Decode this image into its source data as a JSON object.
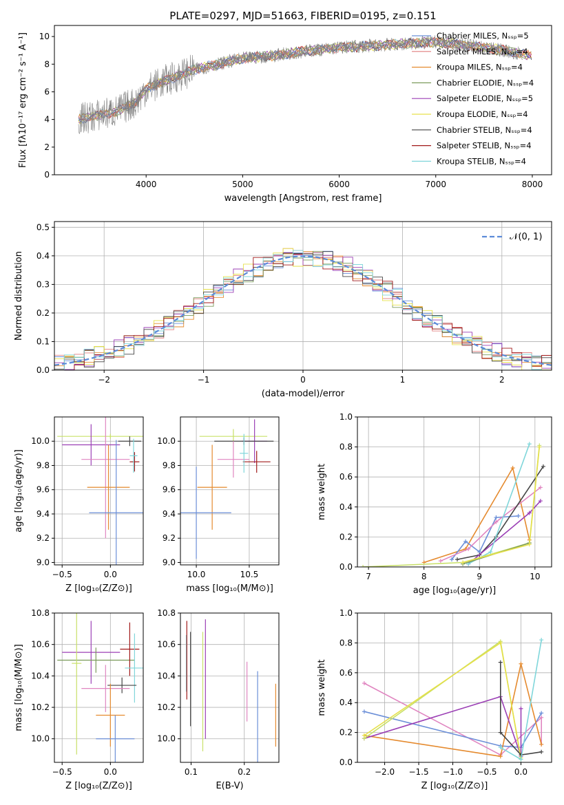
{
  "title": "PLATE=0297, MJD=51663, FIBERID=0195, z=0.151",
  "chart_data": [
    {
      "id": "spectrum",
      "type": "line",
      "xlabel": "wavelength [Angstrom, rest frame]",
      "ylabel": "Flux [fλ10⁻¹⁷ erg cm⁻² s⁻¹ A⁻¹]",
      "xlim": [
        3050,
        8200
      ],
      "ylim": [
        0,
        10.8
      ],
      "xticks": [
        "4000",
        "5000",
        "6000",
        "7000",
        "8000"
      ],
      "yticks": [
        "0",
        "2",
        "4",
        "6",
        "8",
        "10"
      ],
      "grid": false,
      "legend": "upper-right",
      "series": [
        {
          "name": "Chabrier MILES, N_SSP=5",
          "color": "#6b8fd8"
        },
        {
          "name": "Salpeter MILES, N_SSP=4",
          "color": "#e07b7b"
        },
        {
          "name": "Kroupa MILES, N_SSP=4",
          "color": "#e58a2e"
        },
        {
          "name": "Chabrier ELODIE, N_SSP=4",
          "color": "#7a9a5a"
        },
        {
          "name": "Salpeter ELODIE, N_SSP=5",
          "color": "#9b3fb5"
        },
        {
          "name": "Kroupa ELODIE, N_SSP=4",
          "color": "#e6e04a"
        },
        {
          "name": "Chabrier STELIB, N_SSP=4",
          "color": "#444444"
        },
        {
          "name": "Salpeter STELIB, N_SSP=4",
          "color": "#a01818"
        },
        {
          "name": "Kroupa STELIB, N_SSP=4",
          "color": "#7fd6da"
        }
      ],
      "observed_color": "#808080",
      "continuum": {
        "x": [
          3300,
          3500,
          3700,
          3900,
          4000,
          4200,
          4500,
          4800,
          5000,
          5300,
          5600,
          6000,
          6500,
          7000,
          7400,
          7700,
          8000
        ],
        "y": [
          4.0,
          4.3,
          4.6,
          5.3,
          6.2,
          6.8,
          7.6,
          8.1,
          8.4,
          8.6,
          8.9,
          9.2,
          9.4,
          9.6,
          9.3,
          9.0,
          8.6
        ]
      }
    },
    {
      "id": "residuals",
      "type": "histogram",
      "xlabel": "(data-model)/error",
      "ylabel": "Normed distribution",
      "xlim": [
        -2.5,
        2.5
      ],
      "ylim": [
        0,
        0.52
      ],
      "xticks": [
        "−2",
        "−1",
        "0",
        "1",
        "2"
      ],
      "yticks": [
        "0.0",
        "0.1",
        "0.2",
        "0.3",
        "0.4",
        "0.5"
      ],
      "grid": true,
      "legend": "upper-right",
      "reference": {
        "name": "𝒩(0, 1)",
        "color": "#5b8ad8"
      },
      "bin_width": 0.1
    },
    {
      "id": "age-vs-Z",
      "type": "errorbar",
      "xlabel": "Z [log₁₀(Z/Z⊙)]",
      "ylabel": "age  [log₁₀(age/yr)]",
      "xlim": [
        -0.58,
        0.34
      ],
      "ylim": [
        8.98,
        10.2
      ],
      "xticks": [
        "−0.5",
        "0.0"
      ],
      "yticks": [
        "9.0",
        "9.2",
        "9.4",
        "9.6",
        "9.8",
        "10.0"
      ],
      "grid": true,
      "points": [
        {
          "x": -0.0,
          "y": 10.04,
          "xerr": 0.55,
          "yerr": 0.02,
          "c": "#c8e068"
        },
        {
          "x": -0.2,
          "y": 9.97,
          "xerr": 0.3,
          "yerr": 0.17,
          "c": "#9b3fb5"
        },
        {
          "x": 0.2,
          "y": 10.0,
          "xerr": 0.12,
          "yerr": 0.04,
          "c": "#444444"
        },
        {
          "x": -0.05,
          "y": 9.85,
          "xerr": 0.25,
          "yerr": 0.65,
          "c": "#e085c0"
        },
        {
          "x": 0.25,
          "y": 9.83,
          "xerr": 0.05,
          "yerr": 0.08,
          "c": "#a01818"
        },
        {
          "x": -0.02,
          "y": 9.62,
          "xerr": 0.22,
          "yerr": 0.35,
          "c": "#e58a2e"
        },
        {
          "x": 0.06,
          "y": 9.41,
          "xerr": 0.28,
          "yerr": 0.6,
          "c": "#6b8fd8"
        },
        {
          "x": 0.24,
          "y": 9.88,
          "xerr": 0.04,
          "yerr": 0.14,
          "c": "#7fd6da"
        }
      ]
    },
    {
      "id": "age-vs-mass",
      "type": "errorbar",
      "xlabel": "mass [log₁₀(M/M⊙)]",
      "ylabel": "",
      "xlim": [
        9.85,
        10.78
      ],
      "ylim": [
        8.98,
        10.2
      ],
      "xticks": [
        "10.0",
        "10.5"
      ],
      "yticks": [
        "9.0",
        "9.2",
        "9.4",
        "9.6",
        "9.8",
        "10.0"
      ],
      "grid": true,
      "points": [
        {
          "x": 10.35,
          "y": 10.04,
          "xerr": 0.32,
          "yerr": 0.06,
          "c": "#c8e068"
        },
        {
          "x": 10.55,
          "y": 10.0,
          "xerr": 0.12,
          "yerr": 0.18,
          "c": "#9b3fb5"
        },
        {
          "x": 10.45,
          "y": 10.0,
          "xerr": 0.28,
          "yerr": 0.03,
          "c": "#444444"
        },
        {
          "x": 10.35,
          "y": 9.85,
          "xerr": 0.15,
          "yerr": 0.15,
          "c": "#e085c0"
        },
        {
          "x": 10.57,
          "y": 9.83,
          "xerr": 0.13,
          "yerr": 0.09,
          "c": "#a01818"
        },
        {
          "x": 10.15,
          "y": 9.62,
          "xerr": 0.14,
          "yerr": 0.35,
          "c": "#e58a2e"
        },
        {
          "x": 10.0,
          "y": 9.41,
          "xerr": 0.33,
          "yerr": 0.38,
          "c": "#6b8fd8"
        },
        {
          "x": 10.45,
          "y": 9.9,
          "xerr": 0.04,
          "yerr": 0.16,
          "c": "#7fd6da"
        }
      ]
    },
    {
      "id": "weight-vs-age",
      "type": "line",
      "xlabel": "age  [log₁₀(age/yr)]",
      "ylabel": "mass weight",
      "xlim": [
        6.8,
        10.3
      ],
      "ylim": [
        0,
        1.0
      ],
      "xticks": [
        "7",
        "8",
        "9",
        "10"
      ],
      "yticks": [
        "0.0",
        "0.2",
        "0.4",
        "0.6",
        "0.8",
        "1.0"
      ],
      "grid": true,
      "series": [
        {
          "c": "#e58a2e",
          "x": [
            8.0,
            8.75,
            9.6,
            9.9
          ],
          "y": [
            0.03,
            0.12,
            0.66,
            0.18
          ]
        },
        {
          "c": "#6b8fd8",
          "x": [
            8.5,
            8.75,
            9.0,
            9.3,
            9.7
          ],
          "y": [
            0.05,
            0.17,
            0.1,
            0.33,
            0.34
          ]
        },
        {
          "c": "#e085c0",
          "x": [
            8.3,
            8.8,
            9.3,
            10.1
          ],
          "y": [
            0.04,
            0.12,
            0.3,
            0.53
          ]
        },
        {
          "c": "#444444",
          "x": [
            8.6,
            9.0,
            9.3,
            10.15
          ],
          "y": [
            0.05,
            0.08,
            0.2,
            0.67
          ]
        },
        {
          "c": "#9b3fb5",
          "x": [
            8.8,
            9.9,
            10.1
          ],
          "y": [
            0.02,
            0.36,
            0.44
          ]
        },
        {
          "c": "#7fd6da",
          "x": [
            8.8,
            9.2,
            9.9
          ],
          "y": [
            0.02,
            0.1,
            0.82
          ]
        },
        {
          "c": "#c8e068",
          "x": [
            6.9,
            8.7,
            9.9,
            10.08
          ],
          "y": [
            0.0,
            0.03,
            0.16,
            0.81
          ]
        },
        {
          "c": "#7a9a5a",
          "x": [
            8.7,
            9.9
          ],
          "y": [
            0.02,
            0.16
          ]
        },
        {
          "c": "#e6e04a",
          "x": [
            8.7,
            9.9,
            10.08
          ],
          "y": [
            0.03,
            0.15,
            0.8
          ]
        }
      ]
    },
    {
      "id": "mass-vs-Z",
      "type": "errorbar",
      "xlabel": "Z [log₁₀(Z/Z⊙)]",
      "ylabel": "mass [log₁₀(M/M⊙)]",
      "xlim": [
        -0.58,
        0.34
      ],
      "ylim": [
        9.85,
        10.8
      ],
      "xticks": [
        "−0.5",
        "0.0"
      ],
      "yticks": [
        "10.0",
        "10.2",
        "10.4",
        "10.6",
        "10.8"
      ],
      "grid": true,
      "points": [
        {
          "x": -0.2,
          "y": 10.55,
          "xerr": 0.3,
          "yerr": 0.2,
          "c": "#9b3fb5"
        },
        {
          "x": -0.15,
          "y": 10.5,
          "xerr": 0.4,
          "yerr": 0.08,
          "c": "#7a9a5a"
        },
        {
          "x": 0.2,
          "y": 10.57,
          "xerr": 0.1,
          "yerr": 0.17,
          "c": "#a01818"
        },
        {
          "x": 0.25,
          "y": 10.45,
          "xerr": 0.1,
          "yerr": 0.22,
          "c": "#7fd6da"
        },
        {
          "x": 0.12,
          "y": 10.34,
          "xerr": 0.15,
          "yerr": 0.05,
          "c": "#444444"
        },
        {
          "x": -0.05,
          "y": 10.32,
          "xerr": 0.25,
          "yerr": 0.15,
          "c": "#e085c0"
        },
        {
          "x": -0.0,
          "y": 10.15,
          "xerr": 0.15,
          "yerr": 0.2,
          "c": "#e58a2e"
        },
        {
          "x": 0.05,
          "y": 10.0,
          "xerr": 0.2,
          "yerr": 0.15,
          "c": "#6b8fd8"
        },
        {
          "x": -0.35,
          "y": 10.48,
          "xerr": 0.05,
          "yerr": 0.58,
          "c": "#c8e068"
        }
      ]
    },
    {
      "id": "mass-vs-ebv",
      "type": "errorbar",
      "xlabel": "E(B-V)",
      "ylabel": "",
      "xlim": [
        0.08,
        0.265
      ],
      "ylim": [
        9.85,
        10.8
      ],
      "xticks": [
        "0.1",
        "0.2"
      ],
      "yticks": [
        "10.0",
        "10.2",
        "10.4",
        "10.6",
        "10.8"
      ],
      "grid": true,
      "points": [
        {
          "x": 0.091,
          "y": 10.48,
          "xerr": 0,
          "yerr": 0.18,
          "c": "#7fd6da"
        },
        {
          "x": 0.092,
          "y": 10.5,
          "xerr": 0,
          "yerr": 0.25,
          "c": "#a01818"
        },
        {
          "x": 0.099,
          "y": 10.38,
          "xerr": 0,
          "yerr": 0.3,
          "c": "#444444"
        },
        {
          "x": 0.122,
          "y": 10.3,
          "xerr": 0,
          "yerr": 0.38,
          "c": "#c8e068"
        },
        {
          "x": 0.127,
          "y": 10.38,
          "xerr": 0,
          "yerr": 0.38,
          "c": "#9b3fb5"
        },
        {
          "x": 0.205,
          "y": 10.3,
          "xerr": 0,
          "yerr": 0.19,
          "c": "#e085c0"
        },
        {
          "x": 0.225,
          "y": 10.12,
          "xerr": 0,
          "yerr": 0.31,
          "c": "#6b8fd8"
        },
        {
          "x": 0.259,
          "y": 10.15,
          "xerr": 0,
          "yerr": 0.2,
          "c": "#e58a2e"
        }
      ]
    },
    {
      "id": "weight-vs-Z",
      "type": "line",
      "xlabel": "Z [log₁₀(Z/Z⊙)]",
      "ylabel": "mass weight",
      "xlim": [
        -2.4,
        0.45
      ],
      "ylim": [
        0,
        1.0
      ],
      "xticks": [
        "−2.0",
        "−1.5",
        "−1.0",
        "−0.5",
        "0.0"
      ],
      "yticks": [
        "0.0",
        "0.2",
        "0.4",
        "0.6",
        "0.8",
        "1.0"
      ],
      "grid": true,
      "series": [
        {
          "c": "#e085c0",
          "x": [
            -2.3,
            -0.3,
            0.3,
            0.3
          ],
          "y": [
            0.53,
            0.05,
            0.3,
            0.12
          ]
        },
        {
          "c": "#6b8fd8",
          "x": [
            -2.3,
            -0.3,
            0.0,
            0.3
          ],
          "y": [
            0.34,
            0.11,
            0.1,
            0.33
          ]
        },
        {
          "c": "#e58a2e",
          "x": [
            -2.3,
            -0.3,
            0.0,
            0.3
          ],
          "y": [
            0.18,
            0.04,
            0.66,
            0.12
          ]
        },
        {
          "c": "#9b3fb5",
          "x": [
            -2.3,
            -0.3,
            0.0,
            0.0
          ],
          "y": [
            0.16,
            0.44,
            0.04,
            0.36
          ]
        },
        {
          "c": "#c8e068",
          "x": [
            -2.3,
            -0.3,
            0.0
          ],
          "y": [
            0.16,
            0.81,
            0.02
          ]
        },
        {
          "c": "#e6e04a",
          "x": [
            -2.3,
            -0.3,
            0.0
          ],
          "y": [
            0.18,
            0.8,
            0.03
          ]
        },
        {
          "c": "#444444",
          "x": [
            -0.3,
            -0.3,
            0.0,
            0.3
          ],
          "y": [
            0.67,
            0.2,
            0.05,
            0.07
          ]
        },
        {
          "c": "#7fd6da",
          "x": [
            -0.3,
            0.0,
            0.3
          ],
          "y": [
            0.1,
            0.02,
            0.82
          ]
        }
      ]
    }
  ]
}
